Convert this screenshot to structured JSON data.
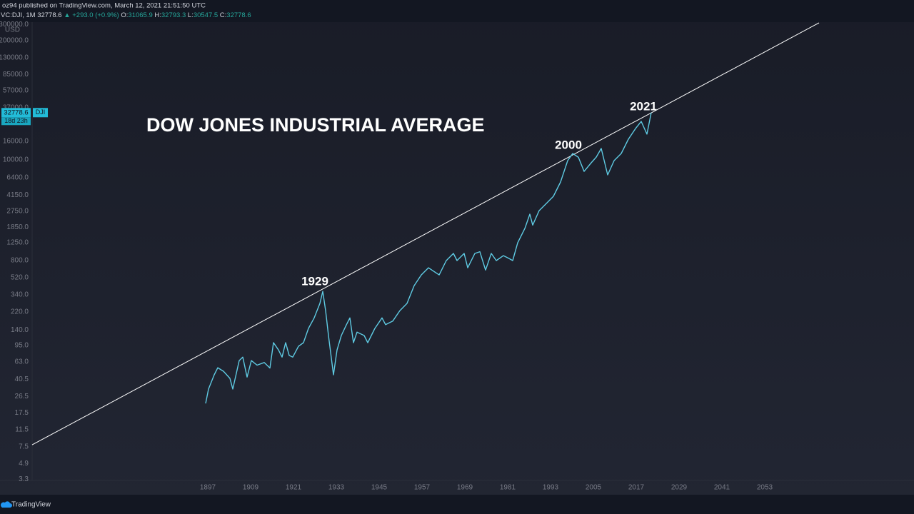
{
  "header": {
    "publisher": "oz94 published on TradingView.com, March 12, 2021 21:51:50 UTC",
    "symbol": "VC:DJI, 1M",
    "last": "32778.6",
    "arrow": "▲",
    "change": "+293.0 (+0.9%)",
    "ohlc": [
      {
        "label": "O:",
        "value": "31065.9"
      },
      {
        "label": "H:",
        "value": "32793.3"
      },
      {
        "label": "L:",
        "value": "30547.5"
      },
      {
        "label": "C:",
        "value": "32778.6"
      }
    ]
  },
  "chart_data": {
    "type": "line",
    "title": "DOW JONES INDUSTRIAL AVERAGE",
    "currency": "USD",
    "log_scale": true,
    "grid": false,
    "color": "#5fcbe3",
    "annotations": [
      "1929",
      "2000",
      "2021"
    ],
    "x": [
      1896.4,
      1897.2,
      1898.8,
      1899.8,
      1901.4,
      1903.2,
      1904.0,
      1905.8,
      1906.8,
      1908.0,
      1909.2,
      1910.8,
      1912.8,
      1914.4,
      1915.4,
      1916.8,
      1917.8,
      1918.8,
      1919.8,
      1920.8,
      1922.4,
      1923.8,
      1925.2,
      1926.8,
      1928.4,
      1929.2,
      1930.0,
      1930.8,
      1932.2,
      1933.2,
      1934.4,
      1935.8,
      1936.8,
      1937.8,
      1938.8,
      1940.8,
      1941.8,
      1943.8,
      1945.8,
      1946.8,
      1948.8,
      1950.8,
      1952.8,
      1954.8,
      1956.8,
      1958.8,
      1961.8,
      1963.8,
      1965.8,
      1966.8,
      1968.8,
      1969.8,
      1971.8,
      1973.2,
      1974.8,
      1976.4,
      1977.8,
      1979.8,
      1981.2,
      1982.4,
      1983.8,
      1985.8,
      1987.2,
      1988.0,
      1989.8,
      1991.8,
      1993.8,
      1995.8,
      1997.8,
      1999.2,
      2000.8,
      2002.4,
      2004.4,
      2005.8,
      2007.2,
      2009.0,
      2010.8,
      2012.8,
      2014.8,
      2016.8,
      2018.4,
      2020.0,
      2021.2
    ],
    "values": [
      22.2,
      31.8,
      45.5,
      54.4,
      49.7,
      41.6,
      31.8,
      65,
      71,
      43,
      65,
      58,
      62,
      54,
      102,
      85,
      71,
      102,
      74,
      71,
      93,
      102,
      146,
      190,
      273,
      370,
      228,
      122,
      45.5,
      85,
      122,
      159,
      190,
      102,
      133,
      122,
      102,
      146,
      190,
      160,
      175,
      228,
      273,
      427,
      558,
      668,
      558,
      800,
      957,
      800,
      957,
      668,
      957,
      1000,
      630,
      957,
      800,
      906,
      850,
      800,
      1250,
      1790,
      2565,
      1950,
      2800,
      3350,
      4010,
      5740,
      9820,
      11750,
      10700,
      7500,
      9310,
      10740,
      13330,
      6870,
      9820,
      11750,
      16830,
      21990,
      26300,
      19100,
      32778.6
    ],
    "price_tag": {
      "value": 32778.6,
      "symbol": "DJI",
      "countdown": "18d 23h"
    },
    "trendline": {
      "color": "#ffffff",
      "x": [
        1847.8,
        2068.2
      ],
      "values": [
        7.85,
        312000
      ]
    },
    "xlim": [
      1847.8,
      2094.8
    ],
    "ylim": [
      3.27,
      312000
    ],
    "xticks": [
      1897,
      1909,
      1921,
      1933,
      1945,
      1957,
      1969,
      1981,
      1993,
      2005,
      2017,
      2029,
      2041,
      2053
    ],
    "yticks": [
      {
        "value": 300000,
        "label": "300000.0"
      },
      {
        "value": 200000,
        "label": "200000.0"
      },
      {
        "value": 130000,
        "label": "130000.0"
      },
      {
        "value": 85000,
        "label": "85000.0"
      },
      {
        "value": 57000,
        "label": "57000.0"
      },
      {
        "value": 37000,
        "label": "37000.0"
      },
      {
        "value": 16000,
        "label": "16000.0"
      },
      {
        "value": 10000,
        "label": "10000.0"
      },
      {
        "value": 6400,
        "label": "6400.0"
      },
      {
        "value": 4150,
        "label": "4150.0"
      },
      {
        "value": 2750,
        "label": "2750.0"
      },
      {
        "value": 1850,
        "label": "1850.0"
      },
      {
        "value": 1250,
        "label": "1250.0"
      },
      {
        "value": 800,
        "label": "800.0"
      },
      {
        "value": 520,
        "label": "520.0"
      },
      {
        "value": 340,
        "label": "340.0"
      },
      {
        "value": 220,
        "label": "220.0"
      },
      {
        "value": 140,
        "label": "140.0"
      },
      {
        "value": 95,
        "label": "95.0"
      },
      {
        "value": 63,
        "label": "63.0"
      },
      40.5,
      26.5,
      17.5,
      11.5,
      7.5,
      4.9,
      3.3
    ]
  },
  "footer": {
    "brand": "TradingView"
  }
}
